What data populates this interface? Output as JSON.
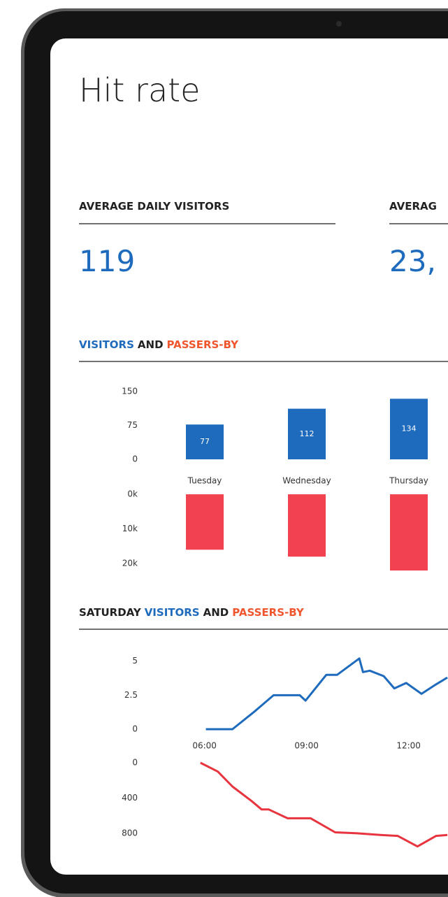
{
  "header": {
    "title": "Hit rate"
  },
  "kpis": [
    {
      "label": "AVERAGE DAILY VISITORS",
      "value": "119"
    },
    {
      "label": "AVERAG",
      "value": "23,"
    }
  ],
  "chart_data": [
    {
      "type": "bar",
      "title_parts": [
        {
          "text": "VISITORS",
          "color": "#1e6bbd"
        },
        {
          "text": "AND",
          "color": "#222222"
        },
        {
          "text": "PASSERS-BY",
          "color": "#f0562e"
        }
      ],
      "categories": [
        "Tuesday",
        "Wednesday",
        "Thursday"
      ],
      "series": [
        {
          "color": "#1e6bbd",
          "values": [
            77,
            112,
            134
          ],
          "data_labels": true
        },
        {
          "color": "#f2414f",
          "values": [
            16000,
            18000,
            22000
          ],
          "axis": "y2"
        }
      ],
      "ylim": [
        0,
        150
      ],
      "yticks": [
        0,
        75,
        150
      ],
      "y2lim": [
        0,
        22000
      ],
      "y2ticks": [
        {
          "value": 0,
          "label": "0k"
        },
        {
          "value": 10000,
          "label": "10k"
        },
        {
          "value": 20000,
          "label": "20k"
        }
      ],
      "y2_inverted": true
    },
    {
      "type": "line",
      "title_parts": [
        {
          "text": "SATURDAY",
          "color": "#222222"
        },
        {
          "text": "VISITORS",
          "color": "#1e6bbd"
        },
        {
          "text": "AND",
          "color": "#222222"
        },
        {
          "text": "PASSERS-BY",
          "color": "#f0562e"
        }
      ],
      "xlim": [
        5,
        13.2
      ],
      "xticks": [
        {
          "value": 6,
          "label": "06:00"
        },
        {
          "value": 9,
          "label": "09:00"
        },
        {
          "value": 12,
          "label": "12:00"
        }
      ],
      "series": [
        {
          "color": "#1e6bbd",
          "x": [
            6.04,
            6.82,
            7.47,
            8.03,
            8.8,
            8.97,
            9.58,
            9.9,
            10.55,
            10.66,
            10.86,
            11.27,
            11.58,
            11.93,
            12.38,
            12.81,
            13.14
          ],
          "values": [
            0,
            0,
            1.3,
            2.5,
            2.5,
            2.1,
            4.0,
            4.0,
            5.2,
            4.2,
            4.3,
            3.9,
            3.0,
            3.4,
            2.6,
            3.3,
            3.8
          ]
        },
        {
          "color": "#e8343f",
          "axis": "y2",
          "x": [
            5.88,
            6.39,
            6.82,
            7.37,
            7.68,
            7.89,
            8.44,
            9.12,
            9.84,
            10.45,
            11.17,
            11.68,
            12.26,
            12.81,
            13.14
          ],
          "values": [
            0,
            100,
            270,
            430,
            530,
            530,
            630,
            630,
            790,
            800,
            820,
            830,
            950,
            830,
            820
          ]
        }
      ],
      "ylim": [
        0,
        5.5
      ],
      "yticks": [
        0,
        2.5,
        5
      ],
      "y2lim": [
        0,
        1000
      ],
      "y2ticks": [
        0,
        400,
        800
      ],
      "y2_inverted": true
    }
  ]
}
